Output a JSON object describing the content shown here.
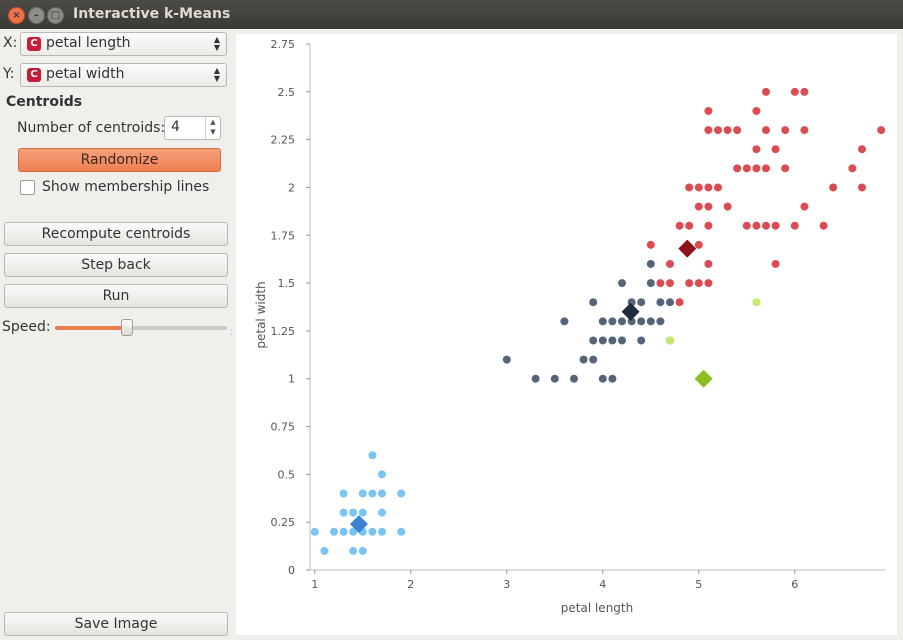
{
  "window": {
    "title": "Interactive k-Means"
  },
  "controls": {
    "x_label": "X:",
    "x_value": "petal length",
    "y_label": "Y:",
    "y_value": "petal width",
    "var_icon_letter": "C",
    "centroids_section": "Centroids",
    "num_centroids_label": "Number of centroids:",
    "num_centroids_value": "4",
    "randomize_label": "Randomize",
    "membership_label": "Show membership lines",
    "membership_checked": false,
    "recompute_label": "Recompute centroids",
    "step_back_label": "Step back",
    "run_label": "Run",
    "speed_label": "Speed:",
    "speed_fraction": 0.42,
    "save_label": "Save Image"
  },
  "chart_data": {
    "type": "scatter",
    "xlabel": "petal length",
    "ylabel": "petal width",
    "xlim": [
      0.95,
      6.95
    ],
    "ylim": [
      0,
      2.75
    ],
    "xticks": [
      "1",
      "2",
      "3",
      "4",
      "5",
      "6"
    ],
    "yticks": [
      "0",
      "0.25",
      "0.5",
      "0.75",
      "1",
      "1.25",
      "1.5",
      "1.75",
      "2",
      "2.25",
      "2.5",
      "2.75"
    ],
    "colors": {
      "cluster_blue": "#7cc4f3",
      "cluster_slate": "#54657a",
      "cluster_red": "#db4c52",
      "cluster_lime": "#c8ea6a"
    },
    "series": [
      {
        "color": "#7cc4f3",
        "points": [
          [
            1,
            0.2
          ],
          [
            1.1,
            0.1
          ],
          [
            1.2,
            0.2
          ],
          [
            1.3,
            0.2
          ],
          [
            1.3,
            0.3
          ],
          [
            1.3,
            0.4
          ],
          [
            1.4,
            0.1
          ],
          [
            1.4,
            0.2
          ],
          [
            1.4,
            0.3
          ],
          [
            1.5,
            0.1
          ],
          [
            1.5,
            0.2
          ],
          [
            1.5,
            0.3
          ],
          [
            1.5,
            0.4
          ],
          [
            1.6,
            0.2
          ],
          [
            1.6,
            0.4
          ],
          [
            1.6,
            0.6
          ],
          [
            1.7,
            0.2
          ],
          [
            1.7,
            0.3
          ],
          [
            1.7,
            0.4
          ],
          [
            1.7,
            0.5
          ],
          [
            1.9,
            0.2
          ],
          [
            1.9,
            0.4
          ]
        ]
      },
      {
        "color": "#54657a",
        "points": [
          [
            3,
            1.1
          ],
          [
            3.3,
            1
          ],
          [
            3.5,
            1
          ],
          [
            3.6,
            1.3
          ],
          [
            3.7,
            1
          ],
          [
            3.8,
            1.1
          ],
          [
            3.9,
            1.1
          ],
          [
            3.9,
            1.2
          ],
          [
            3.9,
            1.4
          ],
          [
            4,
            1
          ],
          [
            4,
            1.2
          ],
          [
            4,
            1.3
          ],
          [
            4.1,
            1
          ],
          [
            4.1,
            1.3
          ],
          [
            4.2,
            1.2
          ],
          [
            4.2,
            1.3
          ],
          [
            4.2,
            1.5
          ],
          [
            4.3,
            1.3
          ],
          [
            4.4,
            1.2
          ],
          [
            4.4,
            1.3
          ],
          [
            4.4,
            1.4
          ],
          [
            4.5,
            1.3
          ],
          [
            4.5,
            1.5
          ],
          [
            4.5,
            1.6
          ],
          [
            4.6,
            1.3
          ],
          [
            4.6,
            1.4
          ],
          [
            4.7,
            1.2
          ],
          [
            4.7,
            1.4
          ],
          [
            4.1,
            1.2
          ],
          [
            4.3,
            1.4
          ]
        ]
      },
      {
        "color": "#db4c52",
        "points": [
          [
            4.5,
            1.7
          ],
          [
            4.6,
            1.5
          ],
          [
            4.7,
            1.5
          ],
          [
            4.7,
            1.6
          ],
          [
            4.8,
            1.4
          ],
          [
            4.8,
            1.8
          ],
          [
            4.9,
            1.5
          ],
          [
            4.9,
            1.8
          ],
          [
            4.9,
            2
          ],
          [
            5,
            1.5
          ],
          [
            5,
            1.7
          ],
          [
            5,
            1.9
          ],
          [
            5,
            2
          ],
          [
            5.1,
            1.5
          ],
          [
            5.1,
            1.6
          ],
          [
            5.1,
            1.8
          ],
          [
            5.1,
            1.9
          ],
          [
            5.1,
            2
          ],
          [
            5.1,
            2.3
          ],
          [
            5.1,
            2.4
          ],
          [
            5.2,
            2
          ],
          [
            5.2,
            2.3
          ],
          [
            5.3,
            1.9
          ],
          [
            5.3,
            2.3
          ],
          [
            5.4,
            2.1
          ],
          [
            5.4,
            2.3
          ],
          [
            5.5,
            1.8
          ],
          [
            5.5,
            2.1
          ],
          [
            5.6,
            1.8
          ],
          [
            5.6,
            2.1
          ],
          [
            5.6,
            2.2
          ],
          [
            5.6,
            2.4
          ],
          [
            5.7,
            1.8
          ],
          [
            5.7,
            2.1
          ],
          [
            5.7,
            2.3
          ],
          [
            5.7,
            2.5
          ],
          [
            5.8,
            1.6
          ],
          [
            5.8,
            1.8
          ],
          [
            5.8,
            2.2
          ],
          [
            5.9,
            2.1
          ],
          [
            5.9,
            2.3
          ],
          [
            6,
            1.8
          ],
          [
            6,
            2.5
          ],
          [
            6.1,
            1.9
          ],
          [
            6.1,
            2.3
          ],
          [
            6.1,
            2.5
          ],
          [
            6.3,
            1.8
          ],
          [
            6.4,
            2
          ],
          [
            6.6,
            2.1
          ],
          [
            6.7,
            2
          ],
          [
            6.7,
            2.2
          ],
          [
            6.9,
            2.3
          ]
        ]
      },
      {
        "color": "#c8ea6a",
        "points": [
          [
            4.7,
            1.2
          ],
          [
            5.6,
            1.4
          ]
        ]
      }
    ],
    "centroids": [
      {
        "x": 1.46,
        "y": 0.24,
        "color": "#3a82d2"
      },
      {
        "x": 4.29,
        "y": 1.35,
        "color": "#1e2c40"
      },
      {
        "x": 4.88,
        "y": 1.68,
        "color": "#8e1218"
      },
      {
        "x": 5.05,
        "y": 1.0,
        "color": "#8cbe22"
      }
    ]
  }
}
